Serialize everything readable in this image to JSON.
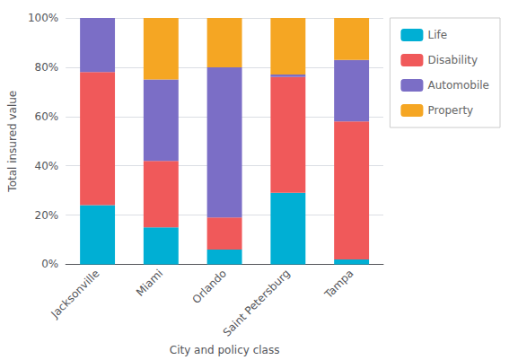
{
  "chart_data": {
    "type": "bar",
    "categories": [
      "Jacksonville",
      "Miami",
      "Orlando",
      "Saint Petersburg",
      "Tampa"
    ],
    "series": [
      {
        "name": "Life",
        "color": "#00afd4",
        "values": [
          24,
          15,
          6,
          29,
          2
        ]
      },
      {
        "name": "Disability",
        "color": "#f0595a",
        "values": [
          54,
          27,
          13,
          47,
          56
        ]
      },
      {
        "name": "Automobile",
        "color": "#7b6ec6",
        "values": [
          22,
          33,
          61,
          1,
          25
        ]
      },
      {
        "name": "Property",
        "color": "#f5a623",
        "values": [
          0,
          25,
          20,
          23,
          17
        ]
      }
    ],
    "stacked": true,
    "xlabel": "City and policy class",
    "ylabel": "Total insured value",
    "ylim": [
      0,
      100
    ],
    "yticks": [
      {
        "value": 0,
        "label": "0%"
      },
      {
        "value": 20,
        "label": "20%"
      },
      {
        "value": 40,
        "label": "40%"
      },
      {
        "value": 60,
        "label": "60%"
      },
      {
        "value": 80,
        "label": "80%"
      },
      {
        "value": 100,
        "label": "100%"
      }
    ],
    "grid": true,
    "legend": "right"
  }
}
